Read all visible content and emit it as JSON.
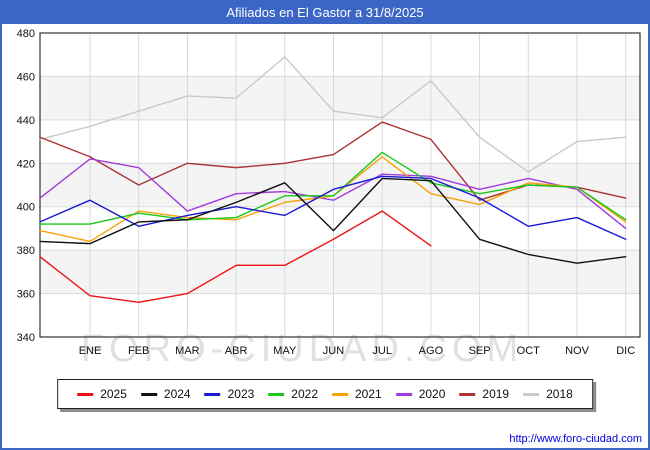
{
  "window": {
    "title": "Afiliados en El Gastor a 31/8/2025"
  },
  "watermark": "FORO-CIUDAD.COM",
  "footer": {
    "link": "http://www.foro-ciudad.com"
  },
  "chart_data": {
    "type": "line",
    "title": "Afiliados en El Gastor a 31/8/2025",
    "xlabel": "",
    "ylabel": "",
    "x_axis": {
      "categories": [
        "ENE",
        "FEB",
        "MAR",
        "ABR",
        "MAY",
        "JUN",
        "JUL",
        "AGO",
        "SEP",
        "OCT",
        "NOV",
        "DIC"
      ],
      "note": "each series has one extra leading point drawn at the left plot edge before ENE"
    },
    "y_axis": {
      "min": 340,
      "max": 480,
      "tick_step": 20,
      "ticks": [
        480,
        460,
        440,
        420,
        400,
        380,
        360,
        340
      ]
    },
    "grid": true,
    "band_color": "#f4f4f4",
    "grid_color": "#d9d9d9",
    "series": [
      {
        "name": "2018",
        "color": "#c9c9c9",
        "values": [
          431,
          437,
          444,
          451,
          450,
          469,
          444,
          441,
          458,
          432,
          416,
          430,
          432
        ]
      },
      {
        "name": "2019",
        "color": "#AA3333",
        "values": [
          432,
          423,
          410,
          420,
          418,
          420,
          424,
          439,
          431,
          403,
          410,
          409,
          404
        ]
      },
      {
        "name": "2020",
        "color": "#A23BDC",
        "values": [
          404,
          422,
          418,
          398,
          406,
          407,
          403,
          415,
          414,
          408,
          413,
          408,
          390
        ]
      },
      {
        "name": "2021",
        "color": "#F5A20A",
        "values": [
          389,
          384,
          398,
          395,
          394,
          402,
          405,
          423,
          406,
          401,
          411,
          409,
          393
        ]
      },
      {
        "name": "2022",
        "color": "#19C819",
        "values": [
          392,
          392,
          397,
          394,
          395,
          405,
          405,
          425,
          411,
          406,
          410,
          409,
          394
        ]
      },
      {
        "name": "2023",
        "color": "#1A1AD6",
        "values": [
          393,
          403,
          391,
          396,
          400,
          396,
          408,
          414,
          413,
          404,
          391,
          395,
          385
        ]
      },
      {
        "name": "2024",
        "color": "#111111",
        "values": [
          384,
          383,
          393,
          394,
          402,
          411,
          389,
          413,
          412,
          385,
          378,
          374,
          377
        ]
      },
      {
        "name": "2025",
        "color": "#EE1111",
        "values": [
          377,
          359,
          356,
          360,
          373,
          373,
          385,
          398,
          382
        ]
      }
    ],
    "legend": {
      "position": "bottom",
      "entries": [
        "2025",
        "2024",
        "2023",
        "2022",
        "2021",
        "2020",
        "2019",
        "2018"
      ]
    }
  }
}
